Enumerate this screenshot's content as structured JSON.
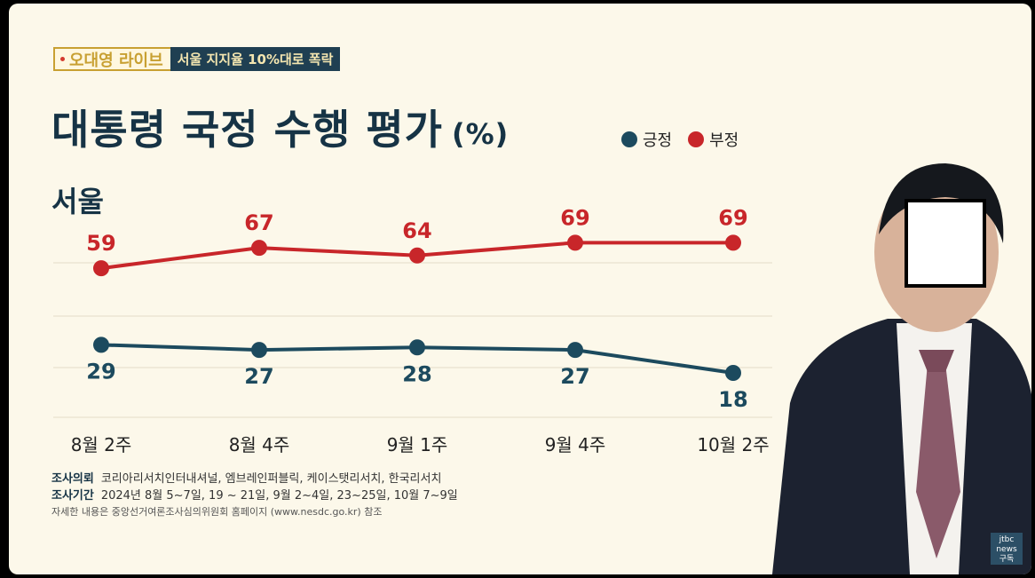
{
  "badge": {
    "show": "오대영 라이브",
    "headline": "서울 지지율 10%대로 폭락"
  },
  "title": {
    "main": "대통령 국정 수행 평가",
    "unit": "(%)"
  },
  "region": "서울",
  "colors": {
    "positive": "#1c4a5e",
    "negative": "#c8262a",
    "navy": "#163345"
  },
  "chart_data": {
    "type": "line",
    "categories": [
      "8월 2주",
      "8월 4주",
      "9월 1주",
      "9월 4주",
      "10월 2주"
    ],
    "series": [
      {
        "name": "긍정",
        "values": [
          29,
          27,
          28,
          27,
          18
        ],
        "color": "#1c4a5e"
      },
      {
        "name": "부정",
        "values": [
          59,
          67,
          64,
          69,
          69
        ],
        "color": "#c8262a"
      }
    ],
    "legend": "top-right",
    "grid": true
  },
  "source": {
    "client_label": "조사의뢰",
    "client": "코리아리서치인터내셔널, 엠브레인퍼블릭, 케이스탯리서치, 한국리서치",
    "period_label": "조사기간",
    "period": "2024년 8월  5~7일,  19 ~ 21일, 9월 2~4일, 23~25일, 10월 7~9일",
    "note": "자세한 내용은 중앙선거여론조사심의위원회 홈페이지 (www.nesdc.go.kr) 참조"
  },
  "logo": {
    "line1": "jtbc",
    "line2": "news",
    "line3": "구독"
  }
}
